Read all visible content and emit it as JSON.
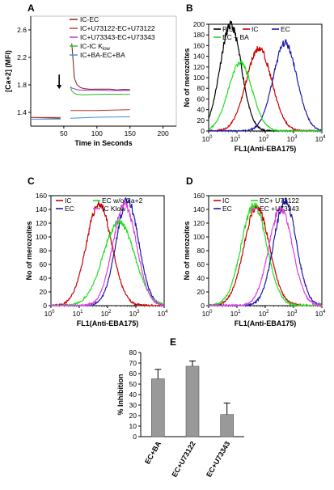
{
  "figure": {
    "panel_labels": [
      "A",
      "B",
      "C",
      "D",
      "E"
    ]
  },
  "chart_data": [
    {
      "panel": "A",
      "type": "line",
      "xlabel": "Time in Seconds",
      "ylabel": "[Ca+2] (MFI)",
      "xlim": [
        0,
        220
      ],
      "ylim": [
        1.2,
        2.8
      ],
      "xticks": [
        "50",
        "100",
        "150",
        "200"
      ],
      "yticks": [
        "1.4",
        "1.8",
        "2.2",
        "2.6"
      ],
      "arrow_at_x": 43,
      "legend": [
        {
          "label": "IC-EC",
          "color": "#7a1a1a"
        },
        {
          "label": "IC+U73122-EC+U73122",
          "color": "#c0392b"
        },
        {
          "label": "IC+U73343-EC+U73343",
          "color": "#b02fd0"
        },
        {
          "label": "IC-IC K",
          "sub": "low",
          "color": "#22bb22"
        },
        {
          "label": "IC+BA-EC+BA",
          "color": "#3a8fd8"
        }
      ],
      "series": [
        {
          "name": "IC-EC",
          "color": "#7a1a1a",
          "x": [
            0,
            45,
            46,
            60,
            62,
            64,
            66,
            70,
            75,
            80,
            90,
            100,
            110,
            120,
            130,
            140,
            150
          ],
          "y": [
            1.32,
            1.32,
            null,
            null,
            2.4,
            2.15,
            1.9,
            1.8,
            1.76,
            1.75,
            1.74,
            1.74,
            1.74,
            1.74,
            1.73,
            1.73,
            1.73
          ]
        },
        {
          "name": "IC+U73122-EC+U73122",
          "color": "#c0392b",
          "x": [
            0,
            45,
            null,
            60,
            100,
            150
          ],
          "y": [
            1.33,
            1.33,
            null,
            1.42,
            1.43,
            1.44
          ]
        },
        {
          "name": "IC+U73343-EC+U73343",
          "color": "#b02fd0",
          "x": [
            60,
            62,
            65,
            70,
            80,
            100,
            120,
            150
          ],
          "y": [
            1.78,
            1.76,
            1.74,
            1.73,
            1.73,
            1.73,
            1.72,
            1.72
          ]
        },
        {
          "name": "IC-IC K low",
          "color": "#22bb22",
          "x": [
            60,
            62,
            65,
            70,
            80,
            100,
            120,
            150
          ],
          "y": [
            1.78,
            1.72,
            1.68,
            1.66,
            1.66,
            1.66,
            1.66,
            1.66
          ]
        },
        {
          "name": "IC+BA-EC+BA",
          "color": "#3a8fd8",
          "x": [
            0,
            45,
            null,
            60,
            100,
            150
          ],
          "y": [
            1.3,
            1.3,
            null,
            1.32,
            1.33,
            1.34
          ]
        }
      ]
    },
    {
      "panel": "B",
      "type": "line",
      "xlabel": "FL1(Anti-EBA175)",
      "ylabel": "No of merozoites",
      "xscale": "log",
      "xlim": [
        1,
        10000
      ],
      "ylim": [
        0,
        200
      ],
      "yticks": [
        "0",
        "20",
        "40",
        "60",
        "80",
        "100",
        "120",
        "140",
        "160",
        "180",
        "200"
      ],
      "legend_rows": [
        [
          "PIS",
          "IC",
          "EC"
        ],
        [
          "EC + BA"
        ]
      ],
      "series": [
        {
          "name": "PIS",
          "color": "#000000",
          "peak_x": 6,
          "peak_y": 198,
          "width": 0.38
        },
        {
          "name": "IC",
          "color": "#cc0000",
          "peak_x": 60,
          "peak_y": 155,
          "width": 0.45
        },
        {
          "name": "EC",
          "color": "#1a1aaa",
          "peak_x": 500,
          "peak_y": 165,
          "width": 0.42
        },
        {
          "name": "EC + BA",
          "color": "#22dd22",
          "peak_x": 13,
          "peak_y": 128,
          "width": 0.42
        }
      ]
    },
    {
      "panel": "C",
      "type": "line",
      "xlabel": "FL1(Anti-EBA175)",
      "ylabel": "No of merozoites",
      "xscale": "log",
      "xlim": [
        1,
        10000
      ],
      "ylim": [
        0,
        160
      ],
      "yticks": [
        "0",
        "20",
        "40",
        "60",
        "80",
        "100",
        "120",
        "140",
        "160"
      ],
      "legend_rows": [
        [
          "IC",
          "EC w/o Ca+2"
        ],
        [
          "EC",
          "IC Klow"
        ]
      ],
      "series": [
        {
          "name": "IC",
          "color": "#cc0000",
          "peak_x": 50,
          "peak_y": 148,
          "width": 0.45
        },
        {
          "name": "EC",
          "color": "#1a1aaa",
          "peak_x": 500,
          "peak_y": 153,
          "width": 0.4
        },
        {
          "name": "EC w/o Ca+2",
          "color": "#22dd22",
          "peak_x": 250,
          "peak_y": 122,
          "width": 0.55
        },
        {
          "name": "IC Klow",
          "color": "#e040e0",
          "peak_x": 400,
          "peak_y": 147,
          "width": 0.42
        }
      ]
    },
    {
      "panel": "D",
      "type": "line",
      "xlabel": "FL1(Anti-EBA175)",
      "ylabel": "No of merozoites",
      "xscale": "log",
      "xlim": [
        1,
        10000
      ],
      "ylim": [
        0,
        160
      ],
      "yticks": [
        "0",
        "20",
        "40",
        "60",
        "80",
        "100",
        "120",
        "140",
        "160"
      ],
      "legend_rows": [
        [
          "IC",
          "EC+ U73122"
        ],
        [
          "EC",
          "EC +U73343"
        ]
      ],
      "series": [
        {
          "name": "IC",
          "color": "#cc0000",
          "peak_x": 50,
          "peak_y": 143,
          "width": 0.45
        },
        {
          "name": "EC",
          "color": "#1a1aaa",
          "peak_x": 500,
          "peak_y": 152,
          "width": 0.4
        },
        {
          "name": "EC+ U73122",
          "color": "#22dd22",
          "peak_x": 40,
          "peak_y": 146,
          "width": 0.45
        },
        {
          "name": "EC +U73343",
          "color": "#e040e0",
          "peak_x": 350,
          "peak_y": 141,
          "width": 0.42
        }
      ]
    },
    {
      "panel": "E",
      "type": "bar",
      "ylabel": "% Inhibition",
      "categories": [
        "EC+BA",
        "EC+U73122",
        "EC+U73343"
      ],
      "values": [
        55,
        67,
        21
      ],
      "errors": [
        9,
        5,
        11
      ],
      "ylim": [
        0,
        80
      ],
      "yticks": [
        "0",
        "10",
        "20",
        "30",
        "40",
        "50",
        "60",
        "70",
        "80"
      ],
      "bar_color": "#999999"
    }
  ]
}
